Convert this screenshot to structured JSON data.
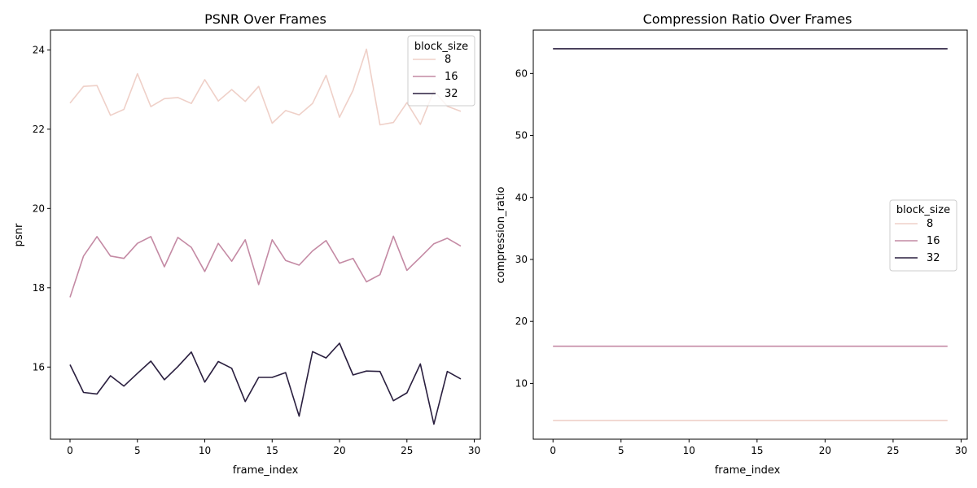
{
  "chart_data": [
    {
      "type": "line",
      "title": "PSNR Over Frames",
      "xlabel": "frame_index",
      "ylabel": "psnr",
      "xlim": [
        -1.45,
        30.45
      ],
      "ylim": [
        14.18,
        24.5
      ],
      "xticks": [
        0,
        5,
        10,
        15,
        20,
        25,
        30
      ],
      "yticks": [
        16,
        18,
        20,
        22,
        24
      ],
      "grid": false,
      "legend": {
        "title": "block_size",
        "placement": "top-right"
      },
      "x": [
        0,
        1,
        2,
        3,
        4,
        5,
        6,
        7,
        8,
        9,
        10,
        11,
        12,
        13,
        14,
        15,
        16,
        17,
        18,
        19,
        20,
        21,
        22,
        23,
        24,
        25,
        26,
        27,
        28,
        29
      ],
      "series": [
        {
          "name": "8",
          "color": "#efd0c8",
          "values": [
            22.66,
            23.08,
            23.1,
            22.35,
            22.5,
            23.4,
            22.57,
            22.77,
            22.8,
            22.65,
            23.25,
            22.71,
            23.0,
            22.7,
            23.08,
            22.15,
            22.47,
            22.36,
            22.65,
            23.36,
            22.3,
            22.98,
            24.02,
            22.11,
            22.17,
            22.67,
            22.12,
            22.97,
            22.58,
            22.45
          ]
        },
        {
          "name": "16",
          "color": "#c48aa4",
          "values": [
            17.76,
            18.8,
            19.29,
            18.8,
            18.74,
            19.12,
            19.29,
            18.53,
            19.27,
            19.02,
            18.41,
            19.12,
            18.67,
            19.21,
            18.08,
            19.21,
            18.69,
            18.57,
            18.93,
            19.19,
            18.62,
            18.74,
            18.15,
            18.33,
            19.3,
            18.44,
            18.77,
            19.11,
            19.25,
            19.05
          ]
        },
        {
          "name": "32",
          "color": "#2a1f3f",
          "values": [
            16.06,
            15.36,
            15.32,
            15.78,
            15.52,
            15.84,
            16.15,
            15.68,
            16.01,
            16.38,
            15.62,
            16.14,
            15.97,
            15.13,
            15.74,
            15.74,
            15.86,
            14.76,
            16.39,
            16.23,
            16.6,
            15.8,
            15.9,
            15.89,
            15.15,
            15.35,
            16.08,
            14.56,
            15.89,
            15.7
          ]
        }
      ]
    },
    {
      "type": "line",
      "title": "Compression Ratio Over Frames",
      "xlabel": "frame_index",
      "ylabel": "compression_ratio",
      "xlim": [
        -1.45,
        30.45
      ],
      "ylim": [
        1.0,
        67.0
      ],
      "xticks": [
        0,
        5,
        10,
        15,
        20,
        25,
        30
      ],
      "yticks": [
        10,
        20,
        30,
        40,
        50,
        60
      ],
      "grid": false,
      "legend": {
        "title": "block_size",
        "placement": "center-right"
      },
      "x": [
        0,
        1,
        2,
        3,
        4,
        5,
        6,
        7,
        8,
        9,
        10,
        11,
        12,
        13,
        14,
        15,
        16,
        17,
        18,
        19,
        20,
        21,
        22,
        23,
        24,
        25,
        26,
        27,
        28,
        29
      ],
      "series": [
        {
          "name": "8",
          "color": "#efd0c8",
          "values": [
            4,
            4,
            4,
            4,
            4,
            4,
            4,
            4,
            4,
            4,
            4,
            4,
            4,
            4,
            4,
            4,
            4,
            4,
            4,
            4,
            4,
            4,
            4,
            4,
            4,
            4,
            4,
            4,
            4,
            4
          ]
        },
        {
          "name": "16",
          "color": "#c48aa4",
          "values": [
            16,
            16,
            16,
            16,
            16,
            16,
            16,
            16,
            16,
            16,
            16,
            16,
            16,
            16,
            16,
            16,
            16,
            16,
            16,
            16,
            16,
            16,
            16,
            16,
            16,
            16,
            16,
            16,
            16,
            16
          ]
        },
        {
          "name": "32",
          "color": "#2a1f3f",
          "values": [
            64,
            64,
            64,
            64,
            64,
            64,
            64,
            64,
            64,
            64,
            64,
            64,
            64,
            64,
            64,
            64,
            64,
            64,
            64,
            64,
            64,
            64,
            64,
            64,
            64,
            64,
            64,
            64,
            64,
            64
          ]
        }
      ]
    }
  ]
}
